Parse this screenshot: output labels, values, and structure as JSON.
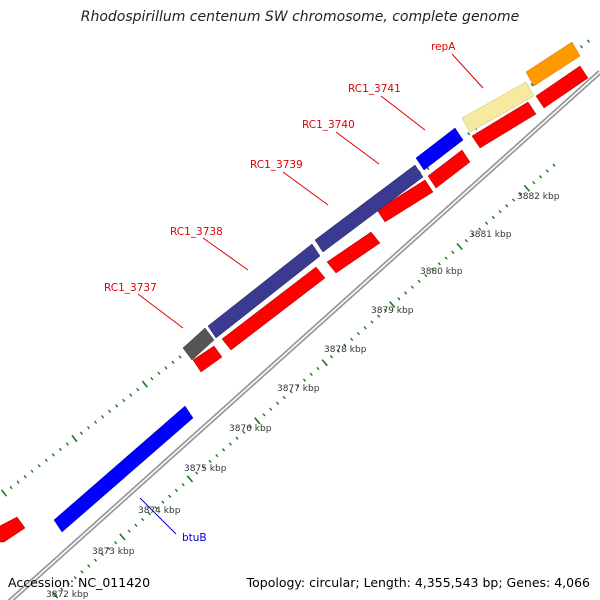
{
  "title": "Rhodospirillum centenum SW chromosome, complete genome",
  "accession": "Accession: NC_011420",
  "topology": "Topology: circular; Length: 4,355,543 bp; Genes: 4,066",
  "colors": {
    "backbone": "#9a9a9a",
    "tick": "#1a7a1a",
    "label_red": "#e00000",
    "label_blue": "#0000cc",
    "gene_red": "#ff0000",
    "gene_blue": "#0000ff",
    "gene_navy": "#3a3a90",
    "gene_gray": "#555555",
    "gene_yellow": "#f5eaa0",
    "gene_orange": "#ff9900"
  },
  "scale_labels": [
    "3872 kbp",
    "3873 kbp",
    "3874 kbp",
    "3875 kbp",
    "3876 kbp",
    "3877 kbp",
    "3878 kbp",
    "3879 kbp",
    "3880 kbp",
    "3881 kbp",
    "3882 kbp"
  ],
  "gene_labels": [
    {
      "id": "RC1_3737",
      "color": "red"
    },
    {
      "id": "RC1_3738",
      "color": "red"
    },
    {
      "id": "RC1_3739",
      "color": "red"
    },
    {
      "id": "RC1_3740",
      "color": "red"
    },
    {
      "id": "RC1_3741",
      "color": "red"
    },
    {
      "id": "repA",
      "color": "red"
    },
    {
      "id": "btuB",
      "color": "blue"
    }
  ]
}
